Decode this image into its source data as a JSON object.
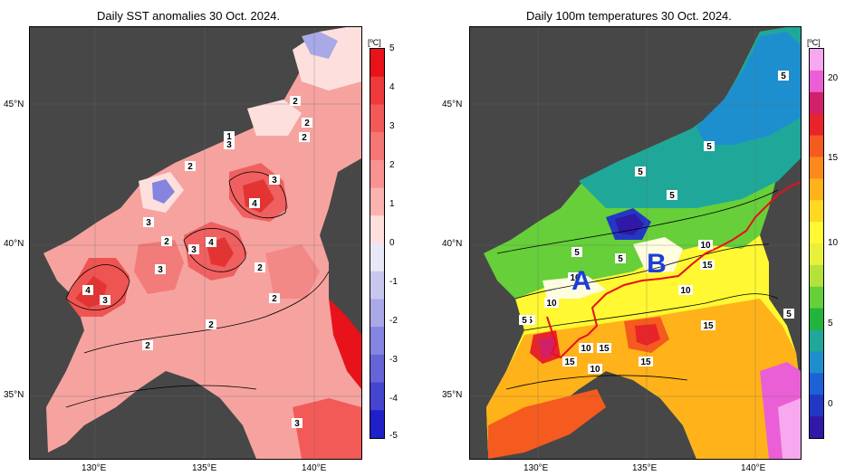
{
  "left_panel": {
    "title": "Daily SST anomalies 30 Oct. 2024.",
    "unit": "[ºC]",
    "colorbar_ticks": [
      "5",
      "4",
      "3",
      "2",
      "1",
      "0",
      "-1",
      "-2",
      "-3",
      "-4",
      "-5"
    ],
    "colorbar_colors": [
      "#e8121a",
      "#ee3a3a",
      "#f25a58",
      "#f57774",
      "#f89391",
      "#fbb3b0",
      "#fde0dd",
      "#e8e8f6",
      "#c8c8ef",
      "#a9a9e8",
      "#8585e0",
      "#6565d8",
      "#4545d0",
      "#2020c8"
    ],
    "contour_labels": [
      "2",
      "2",
      "2",
      "1",
      "3",
      "2",
      "3",
      "4",
      "2",
      "3",
      "3",
      "4",
      "3",
      "4",
      "3",
      "2",
      "2",
      "2",
      "2",
      "3"
    ]
  },
  "right_panel": {
    "title": "Daily 100m temperatures 30 Oct. 2024.",
    "unit": "[ºC]",
    "colorbar_ticks": [
      "20",
      "15",
      "10",
      "5",
      "0"
    ],
    "colorbar_colors": [
      "#f7a8ee",
      "#ea5fd6",
      "#d0206a",
      "#e8232a",
      "#f55a1e",
      "#fb8a1a",
      "#ffb21a",
      "#ffd822",
      "#fff833",
      "#e8f03a",
      "#b5e23a",
      "#66cf3a",
      "#22b43d",
      "#1fa89a",
      "#1e8fce",
      "#1c62d6",
      "#2238c4",
      "#3018a8"
    ],
    "contour_labels": [
      "5",
      "5",
      "5",
      "5",
      "5",
      "5",
      "10",
      "5",
      "10",
      "15",
      "10",
      "10",
      "10",
      "15",
      "10",
      "15",
      "15",
      "15",
      "5",
      "5"
    ],
    "annotations": [
      "A",
      "B"
    ]
  },
  "axes": {
    "lat_labels": [
      "45°N",
      "40°N",
      "35°N"
    ],
    "lon_labels": [
      "130°E",
      "135°E",
      "140°E"
    ]
  }
}
